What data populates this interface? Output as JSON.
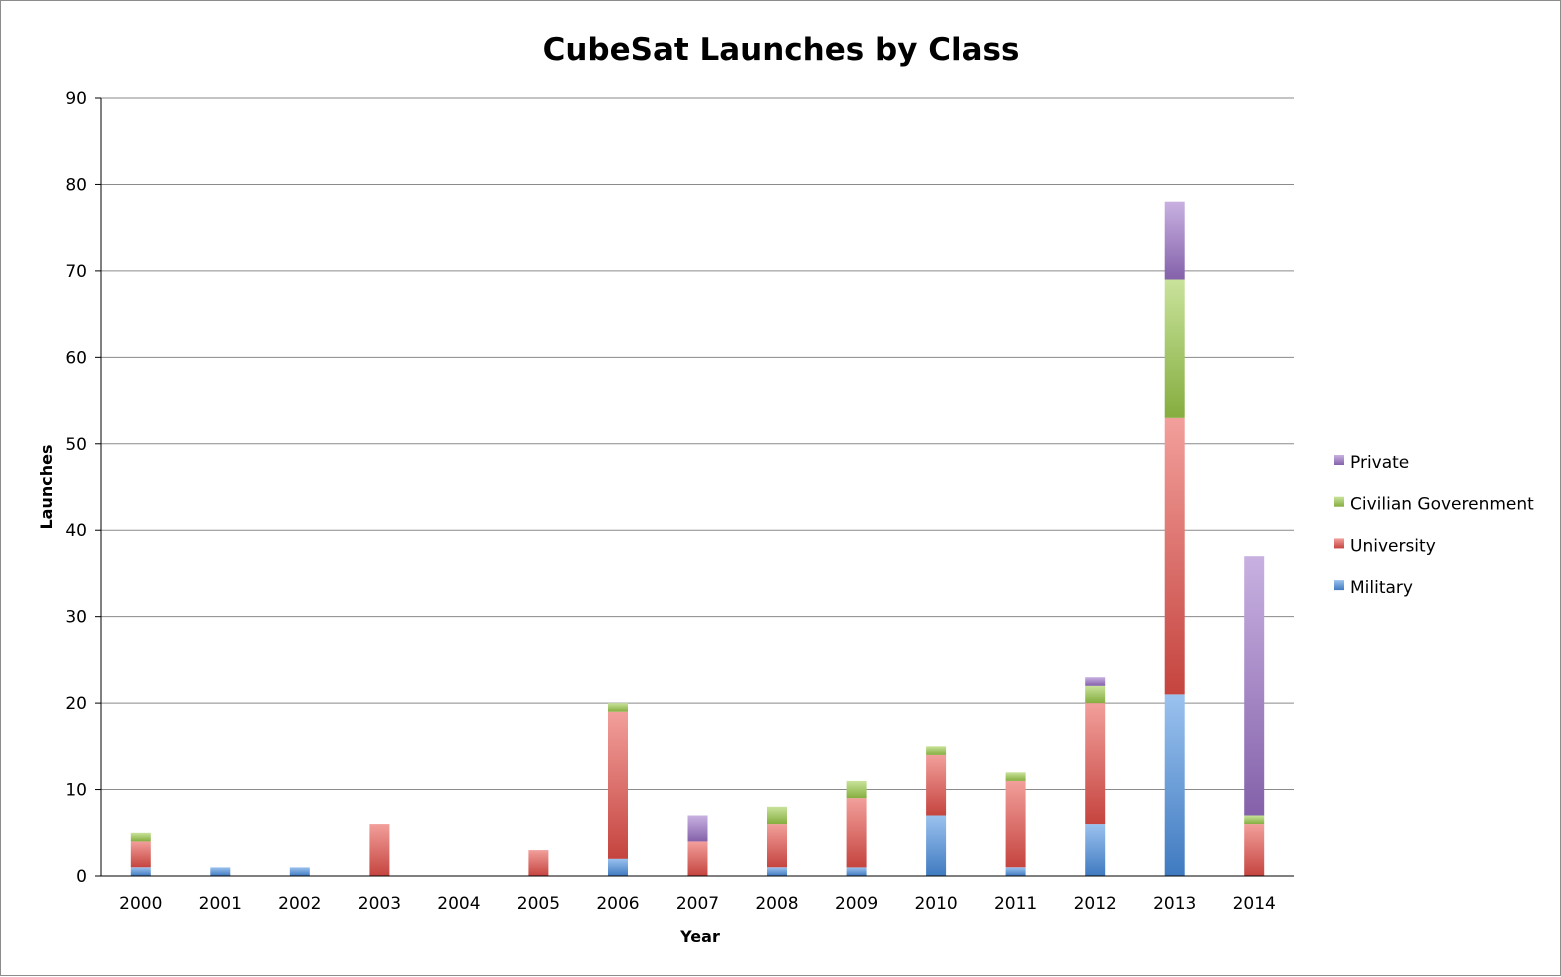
{
  "chart_data": {
    "type": "bar",
    "stacked": true,
    "title": "CubeSat Launches by Class",
    "xlabel": "Year",
    "ylabel": "Launches",
    "ylim": [
      0,
      90
    ],
    "yticks": [
      0,
      10,
      20,
      30,
      40,
      50,
      60,
      70,
      80,
      90
    ],
    "grid": true,
    "legend_position": "right",
    "categories": [
      "2000",
      "2001",
      "2002",
      "2003",
      "2004",
      "2005",
      "2006",
      "2007",
      "2008",
      "2009",
      "2010",
      "2011",
      "2012",
      "2013",
      "2014"
    ],
    "series": [
      {
        "name": "Military",
        "color": "#4a90e2",
        "values": [
          1,
          1,
          1,
          0,
          0,
          0,
          2,
          0,
          1,
          1,
          7,
          1,
          6,
          21,
          0
        ]
      },
      {
        "name": "University",
        "color": "#e8504a",
        "values": [
          3,
          0,
          0,
          6,
          0,
          3,
          17,
          4,
          5,
          8,
          7,
          10,
          14,
          32,
          6
        ]
      },
      {
        "name": "Civilian Goverenment",
        "color": "#9ccc4a",
        "values": [
          1,
          0,
          0,
          0,
          0,
          0,
          1,
          0,
          2,
          2,
          1,
          1,
          2,
          16,
          1
        ]
      },
      {
        "name": "Private",
        "color": "#9b72c8",
        "values": [
          0,
          0,
          0,
          0,
          0,
          0,
          0,
          3,
          0,
          0,
          0,
          0,
          1,
          9,
          30
        ]
      }
    ],
    "legend_order": [
      "Private",
      "Civilian Goverenment",
      "University",
      "Military"
    ]
  }
}
